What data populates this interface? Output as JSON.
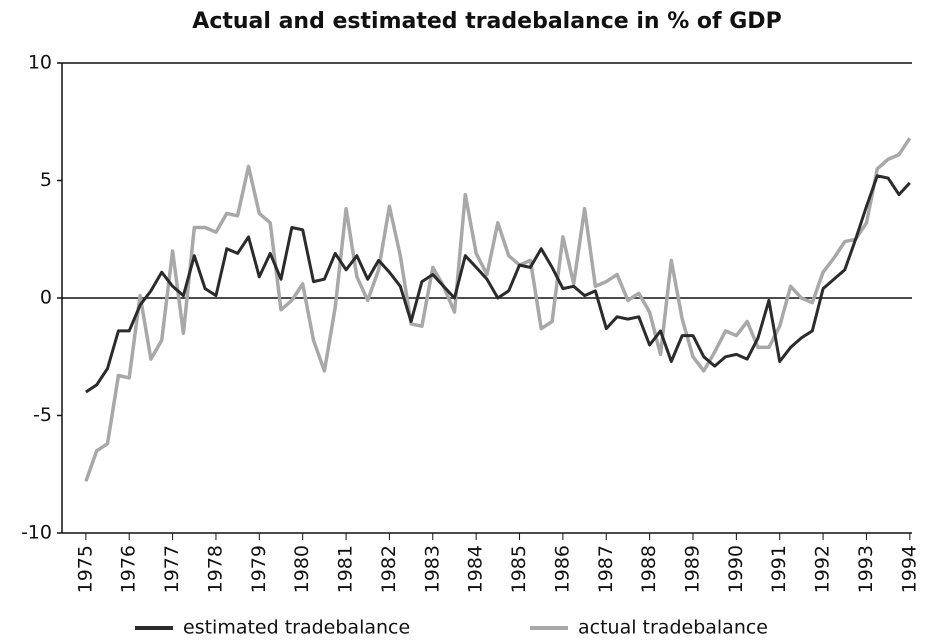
{
  "chart_data": {
    "type": "line",
    "title": "Actual and estimated tradebalance in % of GDP",
    "x": [
      1975,
      1975.25,
      1975.5,
      1975.75,
      1976,
      1976.25,
      1976.5,
      1976.75,
      1977,
      1977.25,
      1977.5,
      1977.75,
      1978,
      1978.25,
      1978.5,
      1978.75,
      1979,
      1979.25,
      1979.5,
      1979.75,
      1980,
      1980.25,
      1980.5,
      1980.75,
      1981,
      1981.25,
      1981.5,
      1981.75,
      1982,
      1982.25,
      1982.5,
      1982.75,
      1983,
      1983.25,
      1983.5,
      1983.75,
      1984,
      1984.25,
      1984.5,
      1984.75,
      1985,
      1985.25,
      1985.5,
      1985.75,
      1986,
      1986.25,
      1986.5,
      1986.75,
      1987,
      1987.25,
      1987.5,
      1987.75,
      1988,
      1988.25,
      1988.5,
      1988.75,
      1989,
      1989.25,
      1989.5,
      1989.75,
      1990,
      1990.25,
      1990.5,
      1990.75,
      1991,
      1991.25,
      1991.5,
      1991.75,
      1992,
      1992.25,
      1992.5,
      1992.75,
      1993,
      1993.25,
      1993.5,
      1993.75,
      1994
    ],
    "series": [
      {
        "name": "estimated tradebalance",
        "color": "#2b2b2b",
        "values": [
          -4,
          -3.7,
          -3,
          -1.4,
          -1.4,
          -0.3,
          0.3,
          1.1,
          0.5,
          0.1,
          1.8,
          0.4,
          0.1,
          2.1,
          1.9,
          2.6,
          0.9,
          1.9,
          0.8,
          3.0,
          2.9,
          0.7,
          0.8,
          1.9,
          1.2,
          1.8,
          0.8,
          1.6,
          1.1,
          0.5,
          -1.0,
          0.7,
          1.0,
          0.5,
          0,
          1.8,
          1.3,
          0.8,
          0,
          0.3,
          1.4,
          1.3,
          2.1,
          1.3,
          0.4,
          0.5,
          0.1,
          0.3,
          -1.3,
          -0.8,
          -0.9,
          -0.8,
          -2.0,
          -1.4,
          -2.7,
          -1.6,
          -1.6,
          -2.5,
          -2.9,
          -2.5,
          -2.4,
          -2.6,
          -1.7,
          -0.1,
          -2.7,
          -2.1,
          -1.7,
          -1.4,
          0.4,
          0.8,
          1.2,
          2.5,
          3.9,
          5.2,
          5.1,
          4.4,
          4.9
        ]
      },
      {
        "name": "actual tradebalance",
        "color": "#a8a8a8",
        "values": [
          -7.8,
          -6.5,
          -6.2,
          -3.3,
          -3.4,
          0.1,
          -2.6,
          -1.8,
          2.0,
          -1.5,
          3.0,
          3.0,
          2.8,
          3.6,
          3.5,
          5.6,
          3.6,
          3.2,
          -0.5,
          -0.1,
          0.6,
          -1.8,
          -3.1,
          -0.4,
          3.8,
          0.9,
          -0.1,
          1.2,
          3.9,
          1.8,
          -1.1,
          -1.2,
          1.3,
          0.5,
          -0.6,
          4.4,
          1.9,
          1.0,
          3.2,
          1.8,
          1.4,
          1.6,
          -1.3,
          -1.0,
          2.6,
          0.6,
          3.8,
          0.5,
          0.7,
          1.0,
          -0.1,
          0.2,
          -0.6,
          -2.4,
          1.6,
          -0.9,
          -2.5,
          -3.1,
          -2.3,
          -1.4,
          -1.6,
          -1.0,
          -2.1,
          -2.1,
          -1.2,
          0.5,
          0.0,
          -0.2,
          1.1,
          1.7,
          2.4,
          2.5,
          3.2,
          5.5,
          5.9,
          6.1,
          6.8
        ]
      }
    ],
    "xlim": [
      1974.45,
      1994.05
    ],
    "xticks": [
      1975,
      1976,
      1977,
      1978,
      1979,
      1980,
      1981,
      1982,
      1983,
      1984,
      1985,
      1986,
      1987,
      1988,
      1989,
      1990,
      1991,
      1992,
      1993,
      1994
    ],
    "ylim": [
      -10,
      10
    ],
    "yticks": [
      -10,
      -5,
      0,
      5,
      10
    ]
  }
}
